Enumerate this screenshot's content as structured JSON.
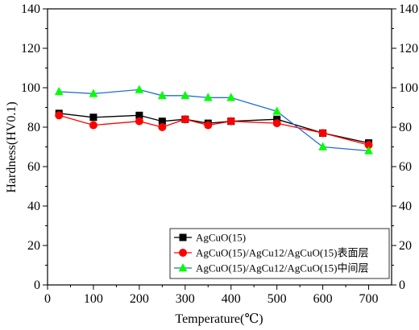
{
  "chart_data": {
    "type": "line",
    "xlabel": "Temperature(℃)",
    "ylabel": "Hardness(HV0.1)",
    "xlim": [
      0,
      750
    ],
    "ylim": [
      0,
      140
    ],
    "xticks": [
      0,
      100,
      200,
      300,
      400,
      500,
      600,
      700
    ],
    "yticks": [
      0,
      20,
      40,
      60,
      80,
      100,
      120,
      140
    ],
    "right_axis_mirrored": true,
    "legend_position": "bottom-right",
    "series": [
      {
        "name": "AgCuO(15)",
        "color": "#000000",
        "marker": "square",
        "x": [
          25,
          100,
          200,
          250,
          300,
          350,
          400,
          500,
          600,
          700
        ],
        "y": [
          87,
          85,
          86,
          83,
          84,
          82,
          83,
          84,
          77,
          72
        ]
      },
      {
        "name": "AgCuO(15)/AgCu12/AgCuO(15)表面层",
        "color": "#ff0000",
        "marker": "circle",
        "x": [
          25,
          100,
          200,
          250,
          300,
          350,
          400,
          500,
          600,
          700
        ],
        "y": [
          86,
          81,
          83,
          80,
          84,
          81,
          83,
          82,
          77,
          71
        ]
      },
      {
        "name": "AgCuO(15)/AgCu12/AgCuO(15)中间层",
        "color": "#1f6fd1",
        "marker_color": "#00ff00",
        "marker": "triangle",
        "x": [
          25,
          100,
          200,
          250,
          300,
          350,
          400,
          500,
          600,
          700
        ],
        "y": [
          98,
          97,
          99,
          96,
          96,
          95,
          95,
          88,
          70,
          68
        ]
      }
    ]
  }
}
